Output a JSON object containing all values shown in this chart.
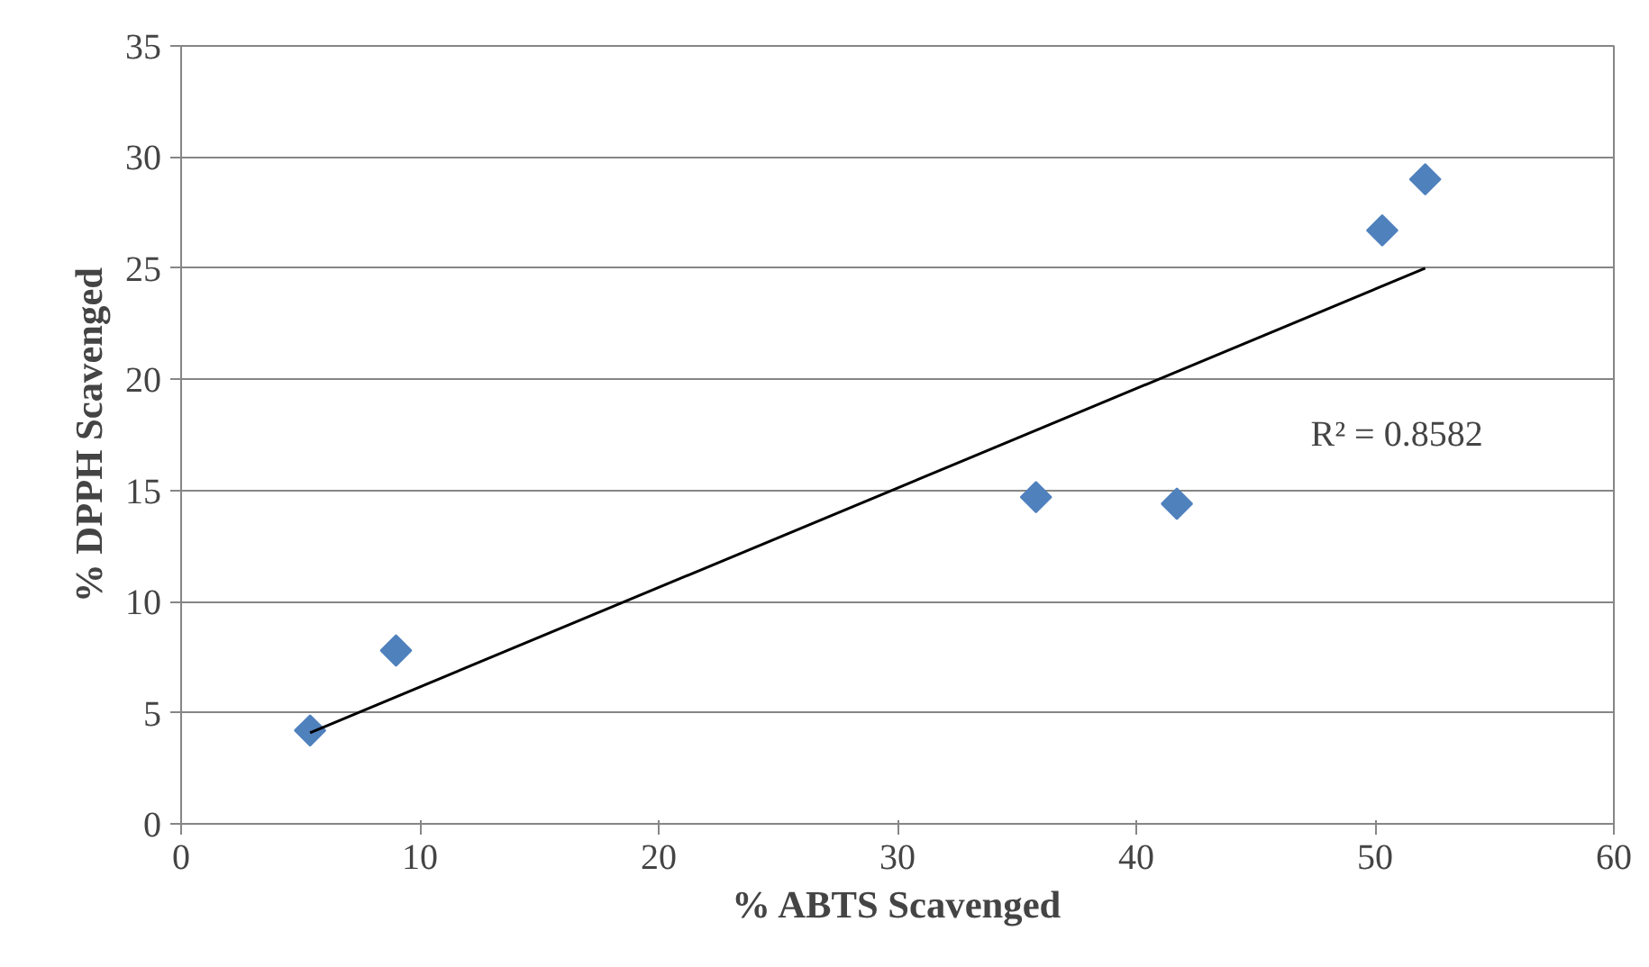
{
  "chart_data": {
    "type": "scatter",
    "xlabel": "% ABTS Scavenged",
    "ylabel": "% DPPH Scavenged",
    "xlim": [
      0,
      60
    ],
    "xticks": [
      0,
      10,
      20,
      30,
      40,
      50,
      60
    ],
    "ylim": [
      0,
      35
    ],
    "yticks": [
      0,
      5,
      10,
      15,
      20,
      25,
      30,
      35
    ],
    "grid": "y",
    "marker": "diamond",
    "series": [
      {
        "x": [
          5.4,
          9.0,
          35.8,
          41.7,
          50.3,
          52.1
        ],
        "values": [
          4.2,
          7.8,
          14.7,
          14.4,
          26.7,
          29.0
        ],
        "color": "#4f81bd"
      },
      {
        "type": "line",
        "x": [
          5.4,
          52.1
        ],
        "values": [
          4.1,
          25.0
        ],
        "color": "#000000",
        "marker": "none",
        "line_style": "solid"
      }
    ],
    "annotations": [
      "R² = 0.8582"
    ]
  }
}
